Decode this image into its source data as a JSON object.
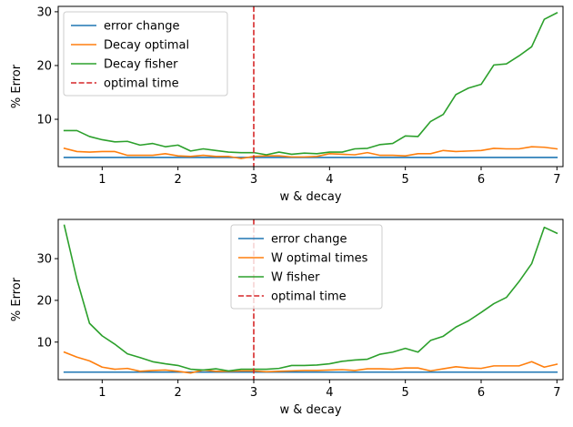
{
  "chart_data": [
    {
      "type": "line",
      "xlabel": "w & decay",
      "ylabel": "% Error",
      "xlim": [
        0.42,
        7.08
      ],
      "ylim": [
        1.2,
        31.0
      ],
      "xticks": [
        1,
        2,
        3,
        4,
        5,
        6,
        7
      ],
      "yticks": [
        10,
        20,
        30
      ],
      "grid": false,
      "legend_placement": "top-left",
      "x": [
        0.5,
        0.667,
        0.833,
        1.0,
        1.167,
        1.333,
        1.5,
        1.667,
        1.833,
        2.0,
        2.167,
        2.333,
        2.5,
        2.667,
        2.833,
        3.0,
        3.167,
        3.333,
        3.5,
        3.667,
        3.833,
        4.0,
        4.167,
        4.333,
        4.5,
        4.667,
        4.833,
        5.0,
        5.167,
        5.333,
        5.5,
        5.667,
        5.833,
        6.0,
        6.167,
        6.333,
        6.5,
        6.667,
        6.833,
        7.0
      ],
      "series": [
        {
          "name": "error change",
          "color": "#1f77b4",
          "style": "solid",
          "values": [
            2.9,
            2.9,
            2.9,
            2.9,
            2.9,
            2.9,
            2.9,
            2.9,
            2.9,
            2.9,
            2.9,
            2.9,
            2.9,
            2.9,
            2.9,
            2.9,
            2.9,
            2.9,
            2.9,
            2.9,
            2.9,
            2.9,
            2.9,
            2.9,
            2.9,
            2.9,
            2.9,
            2.9,
            2.9,
            2.9,
            2.9,
            2.9,
            2.9,
            2.9,
            2.9,
            2.9,
            2.9,
            2.9,
            2.9,
            2.9
          ]
        },
        {
          "name": "Decay optimal",
          "color": "#ff7f0e",
          "style": "solid",
          "values": [
            4.6,
            4.0,
            3.9,
            4.0,
            4.0,
            3.3,
            3.3,
            3.3,
            3.6,
            3.2,
            3.1,
            3.3,
            3.1,
            3.1,
            2.7,
            3.1,
            3.2,
            3.2,
            3.0,
            3.0,
            3.1,
            3.6,
            3.5,
            3.4,
            3.8,
            3.3,
            3.3,
            3.2,
            3.6,
            3.6,
            4.2,
            4.0,
            4.1,
            4.2,
            4.6,
            4.5,
            4.5,
            4.9,
            4.8,
            4.5
          ]
        },
        {
          "name": "Decay fisher",
          "color": "#2ca02c",
          "style": "solid",
          "values": [
            7.9,
            7.9,
            6.8,
            6.2,
            5.8,
            5.9,
            5.2,
            5.5,
            4.9,
            5.2,
            4.1,
            4.5,
            4.2,
            3.9,
            3.8,
            3.8,
            3.4,
            3.9,
            3.5,
            3.7,
            3.6,
            3.9,
            3.9,
            4.5,
            4.6,
            5.3,
            5.5,
            6.9,
            6.8,
            9.6,
            10.9,
            14.6,
            15.8,
            16.5,
            20.1,
            20.3,
            21.8,
            23.5,
            28.6,
            29.8
          ]
        }
      ],
      "vline": {
        "name": "optimal time",
        "x": 3.0,
        "color": "#d62728",
        "style": "dashed"
      }
    },
    {
      "type": "line",
      "xlabel": "w & decay",
      "ylabel": "% Error",
      "xlim": [
        0.42,
        7.08
      ],
      "ylim": [
        1.0,
        39.4
      ],
      "xticks": [
        1,
        2,
        3,
        4,
        5,
        6,
        7
      ],
      "yticks": [
        10,
        20,
        30
      ],
      "grid": false,
      "legend_placement": "top-center",
      "x": [
        0.5,
        0.667,
        0.833,
        1.0,
        1.167,
        1.333,
        1.5,
        1.667,
        1.833,
        2.0,
        2.167,
        2.333,
        2.5,
        2.667,
        2.833,
        3.0,
        3.167,
        3.333,
        3.5,
        3.667,
        3.833,
        4.0,
        4.167,
        4.333,
        4.5,
        4.667,
        4.833,
        5.0,
        5.167,
        5.333,
        5.5,
        5.667,
        5.833,
        6.0,
        6.167,
        6.333,
        6.5,
        6.667,
        6.833,
        7.0
      ],
      "series": [
        {
          "name": "error change",
          "color": "#1f77b4",
          "style": "solid",
          "values": [
            2.8,
            2.8,
            2.8,
            2.8,
            2.8,
            2.8,
            2.8,
            2.8,
            2.8,
            2.8,
            2.8,
            2.8,
            2.8,
            2.8,
            2.8,
            2.8,
            2.8,
            2.8,
            2.8,
            2.8,
            2.8,
            2.8,
            2.8,
            2.8,
            2.8,
            2.8,
            2.8,
            2.8,
            2.8,
            2.8,
            2.8,
            2.8,
            2.8,
            2.8,
            2.8,
            2.8,
            2.8,
            2.8,
            2.8,
            2.8
          ]
        },
        {
          "name": "W optimal times",
          "color": "#ff7f0e",
          "style": "solid",
          "values": [
            7.6,
            6.4,
            5.5,
            4.0,
            3.5,
            3.7,
            3.0,
            3.2,
            3.3,
            3.0,
            2.6,
            3.3,
            3.0,
            3.0,
            3.1,
            3.1,
            2.9,
            3.0,
            3.1,
            3.2,
            3.2,
            3.3,
            3.4,
            3.2,
            3.6,
            3.6,
            3.5,
            3.8,
            3.8,
            3.1,
            3.6,
            4.1,
            3.8,
            3.7,
            4.3,
            4.3,
            4.3,
            5.3,
            4.0,
            4.7
          ]
        },
        {
          "name": "W fisher",
          "color": "#2ca02c",
          "style": "solid",
          "values": [
            38.0,
            25.0,
            14.5,
            11.5,
            9.5,
            7.2,
            6.3,
            5.3,
            4.8,
            4.4,
            3.5,
            3.3,
            3.6,
            3.1,
            3.5,
            3.5,
            3.5,
            3.7,
            4.4,
            4.4,
            4.5,
            4.8,
            5.4,
            5.7,
            5.9,
            7.1,
            7.6,
            8.5,
            7.6,
            10.4,
            11.4,
            13.6,
            15.1,
            17.1,
            19.2,
            20.7,
            24.5,
            28.8,
            37.5,
            36.1
          ]
        }
      ],
      "vline": {
        "name": "optimal time",
        "x": 3.0,
        "color": "#d62728",
        "style": "dashed"
      }
    }
  ]
}
